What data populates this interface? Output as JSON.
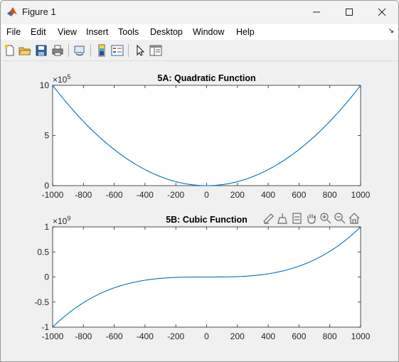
{
  "window": {
    "title": "Figure 1"
  },
  "menu": [
    "File",
    "Edit",
    "View",
    "Insert",
    "Tools",
    "Desktop",
    "Window",
    "Help"
  ],
  "icons": {
    "app": "matlab-icon",
    "toolbar": [
      "new-figure-icon",
      "open-icon",
      "save-icon",
      "print-icon",
      "link-plot-icon",
      "colorbar-icon",
      "legend-icon",
      "pointer-icon",
      "property-inspector-icon"
    ],
    "axes_toolbar": [
      "brush-icon",
      "data-tips-icon",
      "restore-icon",
      "pan-icon",
      "zoom-in-icon",
      "zoom-out-icon",
      "home-icon"
    ]
  },
  "chart_data": [
    {
      "type": "line",
      "title": "5A: Quadratic Function",
      "function": "y = x^2",
      "x_range": [
        -1000,
        1000
      ],
      "xlim": [
        -1000,
        1000
      ],
      "ylim": [
        0,
        1000000
      ],
      "xticks": [
        "-1000",
        "-800",
        "-600",
        "-400",
        "-200",
        "0",
        "200",
        "400",
        "600",
        "800",
        "1000"
      ],
      "yticks": [
        "0",
        "5",
        "10"
      ],
      "exponent_base": "×10",
      "exponent": "5",
      "series_color": "#0072bd"
    },
    {
      "type": "line",
      "title": "5B: Cubic Function",
      "function": "y = x^3",
      "x_range": [
        -1000,
        1000
      ],
      "xlim": [
        -1000,
        1000
      ],
      "ylim": [
        -1000000000,
        1000000000
      ],
      "xticks": [
        "-1000",
        "-800",
        "-600",
        "-400",
        "-200",
        "0",
        "200",
        "400",
        "600",
        "800",
        "1000"
      ],
      "yticks": [
        "-1",
        "-0.5",
        "0",
        "0.5",
        "1"
      ],
      "exponent_base": "×10",
      "exponent": "9",
      "series_color": "#0072bd"
    }
  ]
}
